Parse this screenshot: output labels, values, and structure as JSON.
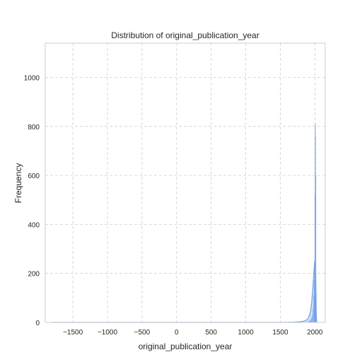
{
  "chart_data": {
    "type": "histogram",
    "title": "Distribution of original_publication_year",
    "xlabel": "original_publication_year",
    "ylabel": "Frequency",
    "xlim": [
      -1900,
      2150
    ],
    "ylim": [
      0,
      1140
    ],
    "xticks": [
      -1500,
      -1000,
      -500,
      0,
      500,
      1000,
      1500,
      2000
    ],
    "yticks": [
      0,
      200,
      400,
      600,
      800,
      1000
    ],
    "xtick_labels": [
      "−1500",
      "−1000",
      "−500",
      "0",
      "500",
      "1000",
      "1500",
      "2000"
    ],
    "ytick_labels": [
      "0",
      "200",
      "400",
      "600",
      "800",
      "1000"
    ],
    "grid": true,
    "color": "#6f9ee6",
    "fill_color": "#a9c4f0",
    "bins": [
      {
        "x0": 1900,
        "x1": 1910,
        "count": 2
      },
      {
        "x0": 1910,
        "x1": 1920,
        "count": 3
      },
      {
        "x0": 1920,
        "x1": 1930,
        "count": 5
      },
      {
        "x0": 1930,
        "x1": 1940,
        "count": 8
      },
      {
        "x0": 1940,
        "x1": 1950,
        "count": 12
      },
      {
        "x0": 1950,
        "x1": 1960,
        "count": 18
      },
      {
        "x0": 1960,
        "x1": 1970,
        "count": 30
      },
      {
        "x0": 1970,
        "x1": 1980,
        "count": 55
      },
      {
        "x0": 1980,
        "x1": 1990,
        "count": 110
      },
      {
        "x0": 1990,
        "x1": 1995,
        "count": 170
      },
      {
        "x0": 1995,
        "x1": 2000,
        "count": 240
      },
      {
        "x0": 2000,
        "x1": 2003,
        "count": 520
      },
      {
        "x0": 2003,
        "x1": 2006,
        "count": 810
      },
      {
        "x0": 2006,
        "x1": 2010,
        "count": 760
      },
      {
        "x0": 2010,
        "x1": 2015,
        "count": 600
      },
      {
        "x0": 2015,
        "x1": 2018,
        "count": 120
      }
    ],
    "kde": [
      [
        -1800,
        0
      ],
      [
        1500,
        0
      ],
      [
        1700,
        1
      ],
      [
        1800,
        3
      ],
      [
        1850,
        6
      ],
      [
        1880,
        10
      ],
      [
        1900,
        16
      ],
      [
        1920,
        28
      ],
      [
        1940,
        50
      ],
      [
        1955,
        85
      ],
      [
        1970,
        140
      ],
      [
        1985,
        200
      ],
      [
        1995,
        240
      ],
      [
        2003,
        258
      ],
      [
        2008,
        245
      ],
      [
        2012,
        200
      ],
      [
        2016,
        120
      ],
      [
        2020,
        40
      ],
      [
        2025,
        5
      ],
      [
        2030,
        0
      ]
    ]
  }
}
